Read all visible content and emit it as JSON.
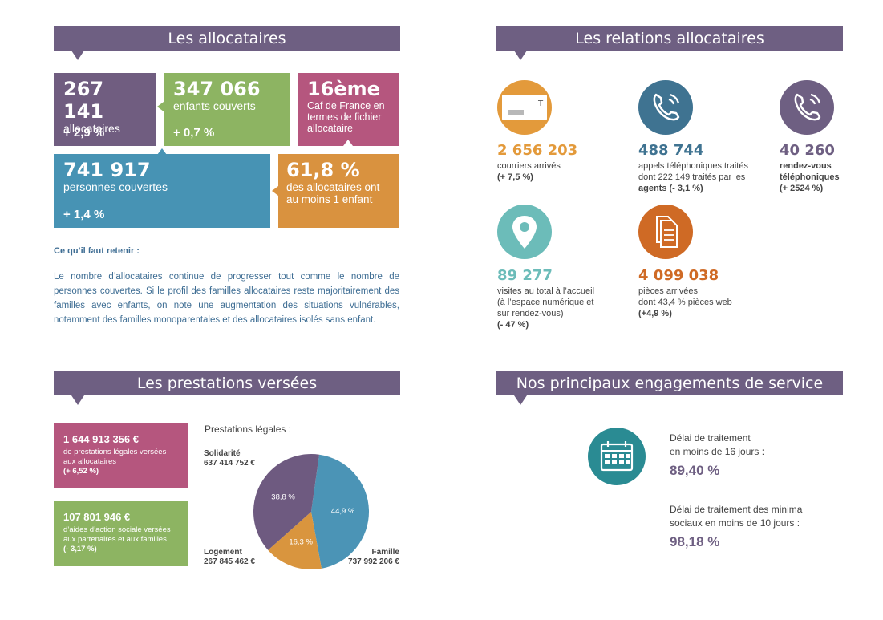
{
  "sections": {
    "allocataires": "Les allocataires",
    "relations": "Les relations allocataires",
    "prestations": "Les prestations versées",
    "engagements": "Nos principaux engagements de service"
  },
  "allocataires": {
    "box1": {
      "value": "267 141",
      "label": "allocataires",
      "delta": "+ 2,9 %"
    },
    "box2": {
      "value": "347 066",
      "label": "enfants couverts",
      "delta": "+ 0,7 %"
    },
    "box3": {
      "value": "16ème",
      "label": "Caf de France en termes de fichier allocataire"
    },
    "box4": {
      "value": "741 917",
      "label": "personnes couvertes",
      "delta": "+ 1,4 %"
    },
    "box5": {
      "value": "61,8 %",
      "label": "des allocataires ont au moins 1 enfant"
    },
    "retain_title": "Ce qu’il faut retenir :",
    "retain_text": "Le nombre d’allocataires continue de progresser tout comme le nombre de personnes couvertes. Si le profil des familles allocataires reste majoritairement des familles avec enfants, on note une augmentation des situations vulnérables, notamment des familles monoparentales et des allocataires isolés sans enfant."
  },
  "relations": {
    "courriers": {
      "value": "2 656 203",
      "line1": "courriers arrivés",
      "line2": "(+ 7,5 %)",
      "icon": "envelope-icon",
      "color": "#e39a3b"
    },
    "appels": {
      "value": "488 744",
      "line1": "appels téléphoniques traités",
      "line2": "dont 222 149 traités par les",
      "line3": "agents (- 3,1 %)",
      "icon": "phone-icon",
      "color": "#3f7391"
    },
    "rdv_tel": {
      "value": "40 260",
      "line1": "rendez-vous",
      "line2": "téléphoniques",
      "line3": "(+ 2524 %)",
      "icon": "phone-icon",
      "color": "#6e5f82"
    },
    "visites": {
      "value": "89 277",
      "line1": "visites au total à l’accueil",
      "line2": "(à l’espace numérique et",
      "line3": "sur rendez-vous)",
      "line4": "(- 47 %)",
      "icon": "map-pin-icon",
      "color": "#6cbcb9"
    },
    "pieces": {
      "value": "4 099 038",
      "line1": "pièces arrivées",
      "line2": "dont 43,4 % pièces web",
      "line3": "(+4,9 %)",
      "icon": "documents-icon",
      "color": "#cf6a25"
    }
  },
  "prestations": {
    "box1": {
      "value": "1 644 913 356 €",
      "l1": "de prestations légales versées",
      "l2": "aux allocataires",
      "l3": "(+ 6,52 %)"
    },
    "box2": {
      "value": "107 801 946 €",
      "l1": "d’aides d’action sociale versées",
      "l2": "aux partenaires et aux familles",
      "l3": "(- 3,17 %)"
    },
    "pie_title": "Prestations légales :",
    "labels": {
      "solidarite": {
        "name": "Solidarité",
        "amount": "637 414 752 €"
      },
      "logement": {
        "name": "Logement",
        "amount": "267 845 462 €"
      },
      "famille": {
        "name": "Famille",
        "amount": "737 992 206 €"
      }
    }
  },
  "chart_data": {
    "type": "pie",
    "title": "Prestations légales :",
    "slices": [
      {
        "name": "Famille",
        "value": 44.9,
        "label": "44,9 %",
        "amount": "737 992 206 €",
        "color": "#4b94b6"
      },
      {
        "name": "Logement",
        "value": 16.3,
        "label": "16,3 %",
        "amount": "267 845 462 €",
        "color": "#d9953e"
      },
      {
        "name": "Solidarité",
        "value": 38.8,
        "label": "38,8 %",
        "amount": "637 414 752 €",
        "color": "#6e5a80"
      }
    ]
  },
  "engagements": {
    "item1": {
      "l1": "Délai de traitement",
      "l2": "en moins de 16 jours :",
      "value": "89,40 %"
    },
    "item2": {
      "l1": "Délai de traitement des minima",
      "l2": "sociaux en moins de 10 jours :",
      "value": "98,18 %"
    },
    "icon": "calendar-icon",
    "icon_color": "#2a8b93"
  }
}
